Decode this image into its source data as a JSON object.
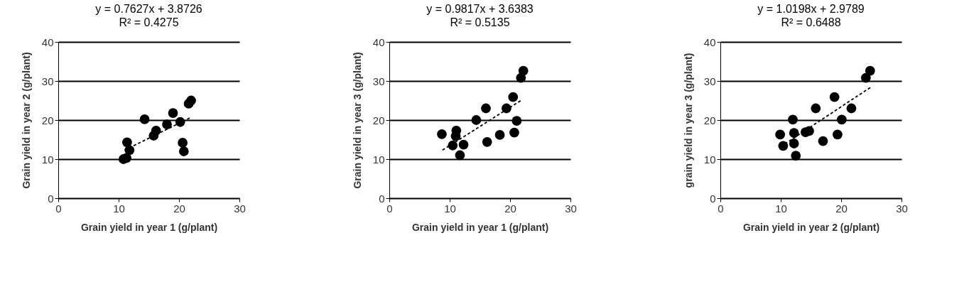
{
  "chart_data": [
    {
      "type": "scatter",
      "title": "y = 0.7627x + 3.8726",
      "subtitle": "R² = 0.4275",
      "xlabel": "Grain yield in year 1 (g/plant)",
      "ylabel": "Grain yield in year 2 (g/plant)",
      "xlim": [
        0,
        30
      ],
      "xticks": [
        0,
        10,
        20,
        30
      ],
      "ylim": [
        0,
        40
      ],
      "yticks": [
        0,
        10,
        20,
        30,
        40
      ],
      "grid": "y",
      "legend": false,
      "series": [
        {
          "marker": "circle",
          "color": "#000000",
          "x": [
            10.8,
            11.3,
            11.4,
            11.8,
            14.3,
            15.8,
            16.2,
            18.0,
            19.0,
            20.2,
            20.6,
            20.8,
            21.6,
            22.0
          ],
          "values": [
            10.0,
            10.3,
            14.3,
            12.3,
            20.2,
            16.0,
            17.3,
            18.9,
            21.8,
            19.5,
            14.2,
            12.0,
            24.2,
            25.0
          ]
        },
        {
          "type": "line",
          "line_style": "dashed",
          "color": "#000000",
          "x": [
            11,
            22
          ],
          "values": [
            12.3,
            20.7
          ]
        }
      ]
    },
    {
      "type": "scatter",
      "title": "y = 0.9817x + 3.6383",
      "subtitle": "R² = 0.5135",
      "xlabel": "Grain yield in year 1 (g/plant)",
      "ylabel": "Grain yield in year 3 (g/plant)",
      "xlim": [
        0,
        30
      ],
      "xticks": [
        0,
        10,
        20,
        30
      ],
      "ylim": [
        0,
        40
      ],
      "yticks": [
        0,
        10,
        20,
        30,
        40
      ],
      "grid": "y",
      "legend": false,
      "series": [
        {
          "marker": "circle",
          "color": "#000000",
          "x": [
            8.7,
            11.1,
            11.0,
            10.5,
            12.3,
            11.7,
            14.4,
            16.0,
            16.2,
            18.3,
            19.4,
            20.5,
            21.1,
            20.7,
            21.8,
            22.2
          ],
          "values": [
            16.4,
            17.3,
            15.9,
            13.5,
            13.7,
            11.0,
            20.0,
            23.0,
            14.4,
            16.2,
            23.0,
            25.9,
            19.8,
            16.8,
            30.8,
            32.6
          ]
        },
        {
          "type": "line",
          "line_style": "dashed",
          "color": "#000000",
          "x": [
            8.8,
            22
          ],
          "values": [
            12.3,
            25.2
          ]
        }
      ]
    },
    {
      "type": "scatter",
      "title": "y = 1.0198x + 2.9789",
      "subtitle": "R² = 0.6488",
      "xlabel": "Grain yield in year 2 (g/plant)",
      "ylabel": "grain yield in year 3 (g/plant)",
      "xlim": [
        0,
        30
      ],
      "xticks": [
        0,
        10,
        20,
        30
      ],
      "ylim": [
        0,
        40
      ],
      "yticks": [
        0,
        10,
        20,
        30,
        40
      ],
      "grid": "y",
      "legend": false,
      "series": [
        {
          "marker": "circle",
          "color": "#000000",
          "x": [
            9.9,
            10.4,
            12.0,
            12.2,
            12.2,
            12.5,
            14.1,
            14.7,
            15.8,
            17.0,
            18.9,
            19.4,
            20.1,
            21.7,
            24.1,
            24.8
          ],
          "values": [
            16.3,
            13.4,
            20.1,
            16.7,
            14.0,
            10.9,
            16.9,
            17.2,
            23.0,
            14.6,
            25.9,
            16.3,
            20.1,
            23.0,
            30.8,
            32.6
          ]
        },
        {
          "type": "line",
          "line_style": "dashed",
          "color": "#000000",
          "x": [
            10,
            25
          ],
          "values": [
            13.2,
            28.5
          ]
        }
      ]
    }
  ]
}
